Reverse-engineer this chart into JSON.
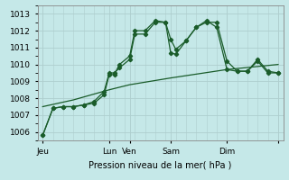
{
  "xlabel": "Pression niveau de la mer( hPa )",
  "bg_color": "#c5e8e8",
  "grid_color": "#aecece",
  "line_color": "#1a5c2a",
  "ylim": [
    1005.5,
    1013.5
  ],
  "yticks": [
    1006,
    1007,
    1008,
    1009,
    1010,
    1011,
    1012,
    1013
  ],
  "xlim": [
    0,
    24
  ],
  "xtick_positions": [
    0.5,
    7,
    9,
    13,
    18.5,
    23.5
  ],
  "xtick_labels": [
    "Jeu",
    "Lun",
    "Ven",
    "Sam",
    "Dim",
    ""
  ],
  "vline_positions": [
    0.5,
    7,
    9,
    13,
    18.5,
    23.5
  ],
  "series1_x": [
    0.5,
    1.5,
    2.5,
    3.5,
    4.5,
    5.5,
    6.5,
    7.0,
    7.5,
    8.0,
    9.0,
    9.5,
    10.5,
    11.5,
    12.5,
    13.0,
    13.5,
    14.5,
    15.5,
    16.5,
    17.5,
    18.5,
    19.5,
    20.5,
    21.5,
    22.5,
    23.5
  ],
  "series1_y": [
    1005.8,
    1007.4,
    1007.5,
    1007.5,
    1007.6,
    1007.8,
    1008.4,
    1009.5,
    1009.5,
    1009.8,
    1010.3,
    1011.8,
    1011.8,
    1012.5,
    1012.5,
    1010.7,
    1010.6,
    1011.4,
    1012.2,
    1012.5,
    1012.5,
    1010.2,
    1009.6,
    1009.6,
    1010.2,
    1009.5,
    1009.5
  ],
  "series2_x": [
    0.5,
    1.5,
    2.5,
    3.5,
    4.5,
    5.5,
    6.5,
    7.0,
    7.5,
    8.0,
    9.0,
    9.5,
    10.5,
    11.5,
    12.5,
    13.0,
    13.5,
    14.5,
    15.5,
    16.5,
    17.5,
    18.5,
    19.5,
    20.5,
    21.5,
    22.5,
    23.5
  ],
  "series2_y": [
    1005.8,
    1007.4,
    1007.5,
    1007.5,
    1007.6,
    1007.7,
    1008.2,
    1009.4,
    1009.4,
    1010.0,
    1010.5,
    1012.0,
    1012.0,
    1012.6,
    1012.5,
    1011.5,
    1010.9,
    1011.4,
    1012.2,
    1012.6,
    1012.2,
    1009.7,
    1009.6,
    1009.6,
    1010.3,
    1009.6,
    1009.5
  ],
  "series3_x": [
    0.5,
    3.5,
    7.0,
    9.0,
    13.0,
    18.5,
    23.5
  ],
  "series3_y": [
    1007.5,
    1007.9,
    1008.5,
    1008.8,
    1009.2,
    1009.7,
    1010.0
  ]
}
